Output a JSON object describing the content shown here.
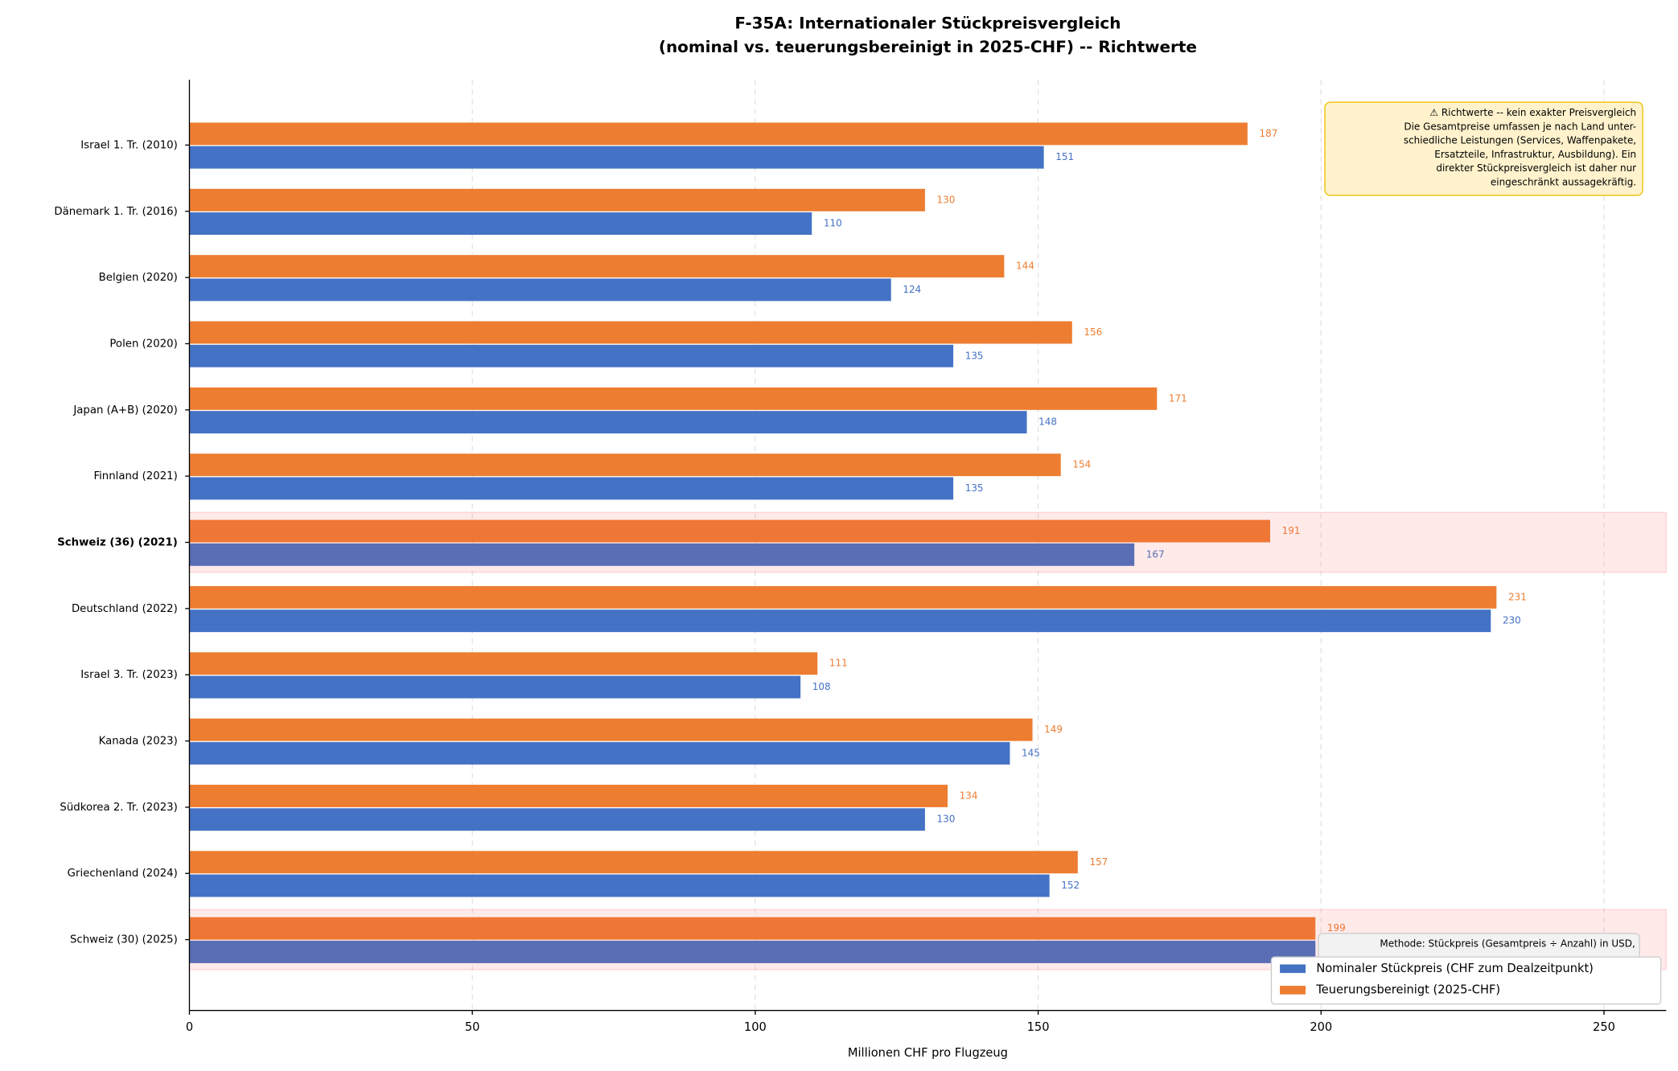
{
  "chart_data": {
    "type": "hbar",
    "title": [
      "F-35A: Internationaler Stückpreisvergleich",
      "(nominal vs. teuerungsbereinigt in 2025-CHF) -- Richtwerte"
    ],
    "x_label": "Millionen CHF pro Flugzeug",
    "categories": [
      "Israel 1. Tr. (2010)",
      "Dänemark 1. Tr. (2016)",
      "Belgien (2020)",
      "Polen (2020)",
      "Japan (A+B) (2020)",
      "Finnland (2021)",
      "Schweiz (36) (2021)",
      "Deutschland (2022)",
      "Israel 3. Tr. (2023)",
      "Kanada (2023)",
      "Südkorea 2. Tr. (2023)",
      "Griechenland (2024)",
      "Schweiz (30) (2025)"
    ],
    "series": [
      {
        "name": "Nominaler Stückpreis (CHF zum Dealzeitpunkt)",
        "color": "#4472c4",
        "values": [
          151,
          110,
          124,
          135,
          148,
          135,
          167,
          230,
          108,
          145,
          130,
          152,
          199
        ]
      },
      {
        "name": "Teuerungsbereinigt (2025-CHF)",
        "color": "#ed7d31",
        "values": [
          187,
          130,
          144,
          156,
          171,
          154,
          191,
          231,
          111,
          149,
          134,
          157,
          199
        ]
      }
    ],
    "xlim": [
      0,
      261
    ],
    "xticks": [
      0,
      50,
      100,
      150,
      200,
      250
    ],
    "grid": true,
    "highlight_categories": [
      6,
      12
    ],
    "bold_categories": [
      6
    ],
    "annotation": [
      "⚠ Richtwerte -- kein exakter Preisvergleich",
      "Die Gesamtpreise umfassen je nach Land unter-",
      "schiedliche Leistungen (Services, Waffenpakete,",
      "Ersatzteile, Infrastruktur, Ausbildung). Ein",
      "direkter Stückpreisvergleich ist daher nur",
      "eingeschränkt aussagekräftig."
    ],
    "method_note": "Methode: Stückpreis (Gesamtpreis ÷ Anzahl) in USD,",
    "legend": "lower right"
  }
}
